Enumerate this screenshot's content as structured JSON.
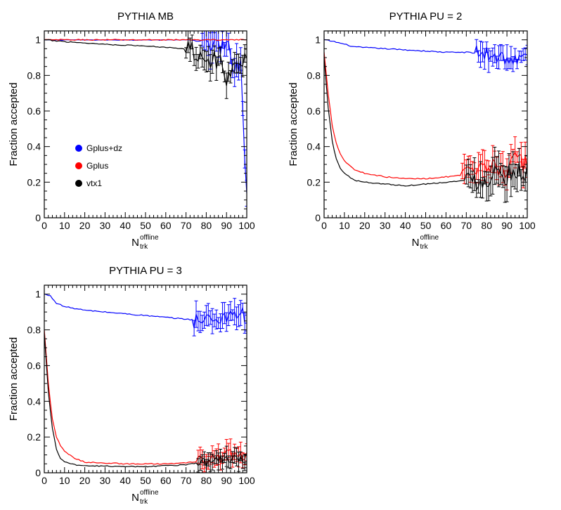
{
  "chart_data": [
    {
      "type": "line",
      "title": "PYTHIA MB",
      "xlabel": {
        "main": "N",
        "sub": "trk",
        "sup": "offline"
      },
      "ylabel": "Fraction accepted",
      "xlim": [
        0,
        100
      ],
      "ylim": [
        0,
        1.05
      ],
      "xticks": [
        0,
        10,
        20,
        30,
        40,
        50,
        60,
        70,
        80,
        90,
        100
      ],
      "yticks": [
        0,
        0.2,
        0.4,
        0.6,
        0.8,
        1
      ],
      "ytick_labels": [
        "0",
        "0.2",
        "0.4",
        "0.6",
        "0.8",
        "1"
      ],
      "legend": {
        "placement": "center-left",
        "entries": [
          "Gplus+dz",
          "Gplus",
          "vtx1"
        ]
      },
      "series": [
        {
          "name": "Gplus+dz",
          "color": "#0000ff",
          "anchors": [
            [
              0,
              1.0
            ],
            [
              60,
              1.0
            ],
            [
              70,
              1.0
            ],
            [
              80,
              0.99
            ],
            [
              85,
              0.97
            ],
            [
              88,
              0.95
            ],
            [
              90,
              0.93
            ],
            [
              93,
              0.9
            ],
            [
              95,
              0.88
            ],
            [
              97,
              0.85
            ],
            [
              98,
              0.6
            ],
            [
              99,
              0.35
            ],
            [
              100,
              0.2
            ]
          ],
          "noise": 0.08,
          "noise_start": 78,
          "err": 0.07
        },
        {
          "name": "Gplus",
          "color": "#ff0000",
          "anchors": [
            [
              0,
              1.0
            ],
            [
              100,
              1.0
            ]
          ],
          "noise": 0.0,
          "noise_start": 100,
          "err": 0.0
        },
        {
          "name": "vtx1",
          "color": "#000000",
          "anchors": [
            [
              0,
              1.0
            ],
            [
              10,
              0.99
            ],
            [
              30,
              0.975
            ],
            [
              50,
              0.965
            ],
            [
              65,
              0.955
            ],
            [
              75,
              0.94
            ],
            [
              82,
              0.9
            ],
            [
              88,
              0.85
            ],
            [
              90,
              0.75
            ],
            [
              92,
              0.85
            ],
            [
              95,
              0.9
            ]
          ],
          "noise": 0.06,
          "noise_start": 70,
          "err": 0.05
        }
      ]
    },
    {
      "type": "line",
      "title": "PYTHIA PU = 2",
      "xlabel": {
        "main": "N",
        "sub": "trk",
        "sup": "offline"
      },
      "ylabel": "Fraction accepted",
      "xlim": [
        0,
        100
      ],
      "ylim": [
        0,
        1.05
      ],
      "xticks": [
        0,
        10,
        20,
        30,
        40,
        50,
        60,
        70,
        80,
        90,
        100
      ],
      "yticks": [
        0,
        0.2,
        0.4,
        0.6,
        0.8,
        1
      ],
      "ytick_labels": [
        "0",
        "0.2",
        "0.4",
        "0.6",
        "0.8",
        "1"
      ],
      "series": [
        {
          "name": "Gplus+dz",
          "color": "#0000ff",
          "anchors": [
            [
              0,
              1.0
            ],
            [
              5,
              0.99
            ],
            [
              15,
              0.96
            ],
            [
              30,
              0.95
            ],
            [
              45,
              0.94
            ],
            [
              60,
              0.93
            ],
            [
              70,
              0.93
            ],
            [
              80,
              0.92
            ],
            [
              90,
              0.9
            ],
            [
              95,
              0.88
            ],
            [
              100,
              0.9
            ]
          ],
          "noise": 0.05,
          "noise_start": 75,
          "err": 0.05
        },
        {
          "name": "Gplus",
          "color": "#ff0000",
          "anchors": [
            [
              0,
              0.93
            ],
            [
              2,
              0.7
            ],
            [
              4,
              0.52
            ],
            [
              6,
              0.42
            ],
            [
              8,
              0.36
            ],
            [
              10,
              0.32
            ],
            [
              15,
              0.27
            ],
            [
              20,
              0.25
            ],
            [
              30,
              0.23
            ],
            [
              40,
              0.22
            ],
            [
              50,
              0.22
            ],
            [
              60,
              0.23
            ],
            [
              70,
              0.24
            ],
            [
              80,
              0.26
            ],
            [
              85,
              0.3
            ],
            [
              90,
              0.27
            ],
            [
              95,
              0.32
            ],
            [
              100,
              0.3
            ]
          ],
          "noise": 0.06,
          "noise_start": 68,
          "err": 0.06
        },
        {
          "name": "vtx1",
          "color": "#000000",
          "anchors": [
            [
              0,
              0.9
            ],
            [
              2,
              0.62
            ],
            [
              4,
              0.43
            ],
            [
              6,
              0.33
            ],
            [
              8,
              0.28
            ],
            [
              10,
              0.25
            ],
            [
              15,
              0.21
            ],
            [
              20,
              0.2
            ],
            [
              30,
              0.19
            ],
            [
              40,
              0.18
            ],
            [
              50,
              0.19
            ],
            [
              60,
              0.2
            ],
            [
              70,
              0.21
            ],
            [
              80,
              0.22
            ],
            [
              85,
              0.27
            ],
            [
              90,
              0.24
            ],
            [
              95,
              0.28
            ],
            [
              100,
              0.25
            ]
          ],
          "noise": 0.06,
          "noise_start": 70,
          "err": 0.07
        }
      ]
    },
    {
      "type": "line",
      "title": "PYTHIA PU = 3",
      "xlabel": {
        "main": "N",
        "sub": "trk",
        "sup": "offline"
      },
      "ylabel": "Fraction accepted",
      "xlim": [
        0,
        100
      ],
      "ylim": [
        0,
        1.05
      ],
      "xticks": [
        0,
        10,
        20,
        30,
        40,
        50,
        60,
        70,
        80,
        90,
        100
      ],
      "yticks": [
        0,
        0.2,
        0.4,
        0.6,
        0.8,
        1
      ],
      "ytick_labels": [
        "0",
        "0.2",
        "0.4",
        "0.6",
        "0.8",
        "1"
      ],
      "series": [
        {
          "name": "Gplus+dz",
          "color": "#0000ff",
          "anchors": [
            [
              0,
              1.0
            ],
            [
              3,
              0.99
            ],
            [
              6,
              0.95
            ],
            [
              10,
              0.93
            ],
            [
              20,
              0.91
            ],
            [
              30,
              0.9
            ],
            [
              40,
              0.89
            ],
            [
              50,
              0.88
            ],
            [
              60,
              0.87
            ],
            [
              70,
              0.86
            ],
            [
              80,
              0.85
            ],
            [
              90,
              0.88
            ],
            [
              95,
              0.9
            ],
            [
              100,
              0.87
            ]
          ],
          "noise": 0.05,
          "noise_start": 74,
          "err": 0.05
        },
        {
          "name": "Gplus",
          "color": "#ff0000",
          "anchors": [
            [
              0,
              0.8
            ],
            [
              2,
              0.5
            ],
            [
              4,
              0.3
            ],
            [
              6,
              0.2
            ],
            [
              8,
              0.15
            ],
            [
              10,
              0.12
            ],
            [
              15,
              0.08
            ],
            [
              20,
              0.06
            ],
            [
              30,
              0.055
            ],
            [
              40,
              0.05
            ],
            [
              50,
              0.05
            ],
            [
              60,
              0.05
            ],
            [
              70,
              0.055
            ],
            [
              80,
              0.07
            ],
            [
              85,
              0.08
            ],
            [
              90,
              0.1
            ],
            [
              95,
              0.1
            ],
            [
              100,
              0.09
            ]
          ],
          "noise": 0.035,
          "noise_start": 76,
          "err": 0.04
        },
        {
          "name": "vtx1",
          "color": "#000000",
          "anchors": [
            [
              0,
              0.78
            ],
            [
              2,
              0.45
            ],
            [
              4,
              0.25
            ],
            [
              6,
              0.13
            ],
            [
              8,
              0.08
            ],
            [
              10,
              0.06
            ],
            [
              15,
              0.045
            ],
            [
              20,
              0.04
            ],
            [
              30,
              0.038
            ],
            [
              40,
              0.035
            ],
            [
              50,
              0.035
            ],
            [
              60,
              0.04
            ],
            [
              70,
              0.045
            ],
            [
              80,
              0.06
            ],
            [
              90,
              0.08
            ],
            [
              100,
              0.06
            ]
          ],
          "noise": 0.03,
          "noise_start": 76,
          "err": 0.04
        }
      ]
    }
  ]
}
